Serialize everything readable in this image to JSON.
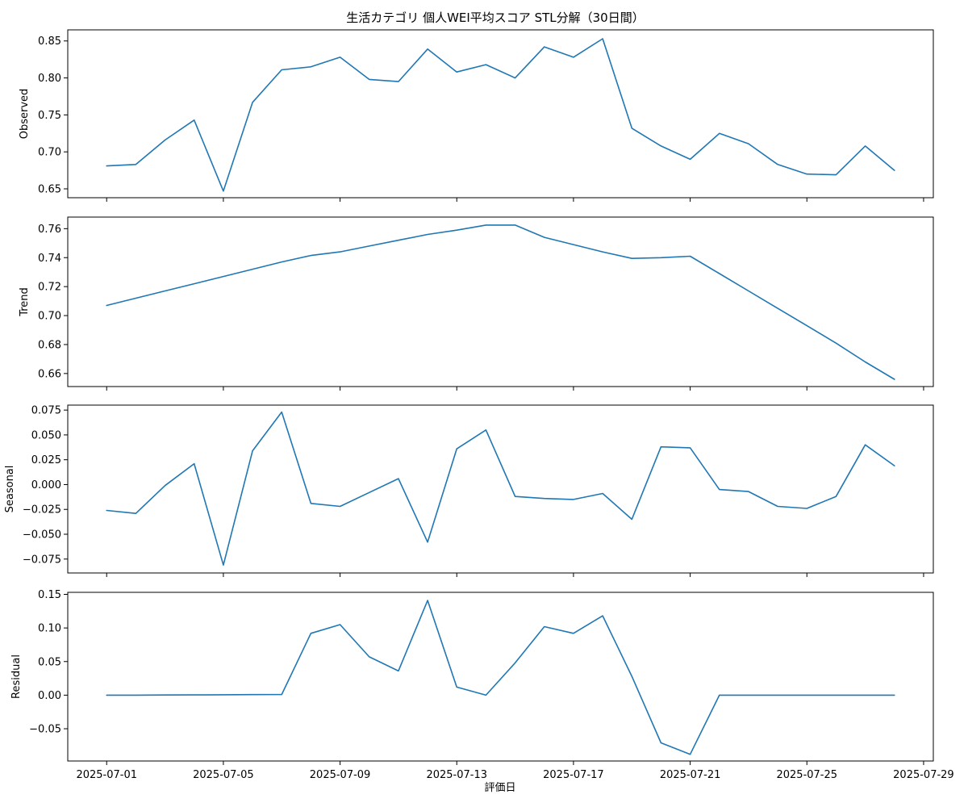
{
  "chart_data": {
    "type": "line",
    "title": "生活カテゴリ 個人WEI平均スコア STL分解（30日間）",
    "xlabel": "評価日",
    "x_ticks": [
      "2025-07-01",
      "2025-07-05",
      "2025-07-09",
      "2025-07-13",
      "2025-07-17",
      "2025-07-21",
      "2025-07-25",
      "2025-07-29"
    ],
    "dates": [
      "2025-07-01",
      "2025-07-02",
      "2025-07-03",
      "2025-07-04",
      "2025-07-05",
      "2025-07-06",
      "2025-07-07",
      "2025-07-08",
      "2025-07-09",
      "2025-07-10",
      "2025-07-11",
      "2025-07-12",
      "2025-07-13",
      "2025-07-14",
      "2025-07-15",
      "2025-07-16",
      "2025-07-17",
      "2025-07-18",
      "2025-07-19",
      "2025-07-20",
      "2025-07-21",
      "2025-07-22",
      "2025-07-23",
      "2025-07-24",
      "2025-07-25",
      "2025-07-26",
      "2025-07-27",
      "2025-07-28"
    ],
    "xlim": [
      "2025-06-29 16:00",
      "2025-07-29 08:00"
    ],
    "line_color": "#1f77b4",
    "grid": false,
    "panels": [
      {
        "ylabel": "Observed",
        "ylim": [
          0.638,
          0.865
        ],
        "y_ticks": [
          "0.65",
          "0.70",
          "0.75",
          "0.80",
          "0.85"
        ],
        "values": [
          0.681,
          0.683,
          0.716,
          0.743,
          0.647,
          0.767,
          0.811,
          0.815,
          0.828,
          0.798,
          0.795,
          0.839,
          0.808,
          0.818,
          0.8,
          0.842,
          0.828,
          0.853,
          0.732,
          0.708,
          0.69,
          0.725,
          0.711,
          0.683,
          0.67,
          0.669,
          0.708,
          0.675
        ]
      },
      {
        "ylabel": "Trend",
        "ylim": [
          0.651,
          0.768
        ],
        "y_ticks": [
          "0.66",
          "0.68",
          "0.70",
          "0.72",
          "0.74",
          "0.76"
        ],
        "values": [
          0.707,
          0.712,
          0.717,
          0.722,
          0.727,
          0.732,
          0.737,
          0.7415,
          0.744,
          0.748,
          0.752,
          0.756,
          0.759,
          0.7625,
          0.7625,
          0.754,
          0.749,
          0.744,
          0.7395,
          0.74,
          0.741,
          0.729,
          0.717,
          0.705,
          0.693,
          0.681,
          0.668,
          0.656
        ]
      },
      {
        "ylabel": "Seasonal",
        "ylim": [
          -0.089,
          0.08
        ],
        "y_ticks": [
          "−0.075",
          "−0.050",
          "−0.025",
          "0.000",
          "0.025",
          "0.050",
          "0.075"
        ],
        "values": [
          -0.026,
          -0.029,
          -0.001,
          0.021,
          -0.081,
          0.034,
          0.073,
          -0.019,
          -0.022,
          -0.008,
          0.006,
          -0.058,
          0.036,
          0.055,
          -0.012,
          -0.014,
          -0.015,
          -0.009,
          -0.035,
          0.038,
          0.037,
          -0.005,
          -0.007,
          -0.022,
          -0.024,
          -0.012,
          0.04,
          0.019
        ]
      },
      {
        "ylabel": "Residual",
        "ylim": [
          -0.098,
          0.153
        ],
        "y_ticks": [
          "−0.05",
          "0.00",
          "0.05",
          "0.10",
          "0.15"
        ],
        "values": [
          0.0,
          0.0,
          0.0002,
          0.0004,
          0.0006,
          0.0008,
          0.001,
          0.092,
          0.105,
          0.057,
          0.036,
          0.141,
          0.012,
          0.0,
          0.048,
          0.102,
          0.092,
          0.118,
          0.028,
          -0.071,
          -0.088,
          0.0,
          0.0,
          0.0,
          0.0,
          0.0,
          0.0,
          0.0
        ]
      }
    ]
  }
}
